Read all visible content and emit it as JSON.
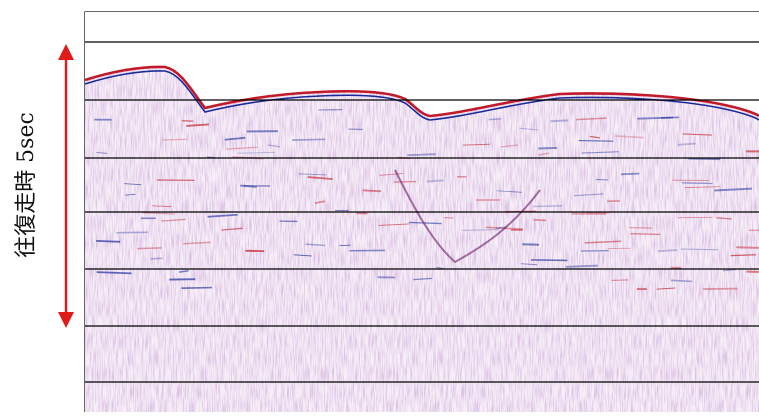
{
  "annotation": {
    "label": "往復走時 5sec",
    "arrow_color": "#e01b1b"
  },
  "colors": {
    "background": "#ffffff",
    "grid_line": "#000000",
    "positive_amplitude": "#1a2a9a",
    "negative_amplitude": "#c21a2a",
    "noise": "#8a5aa8"
  },
  "icons": [
    "double-headed-arrow-icon"
  ]
}
